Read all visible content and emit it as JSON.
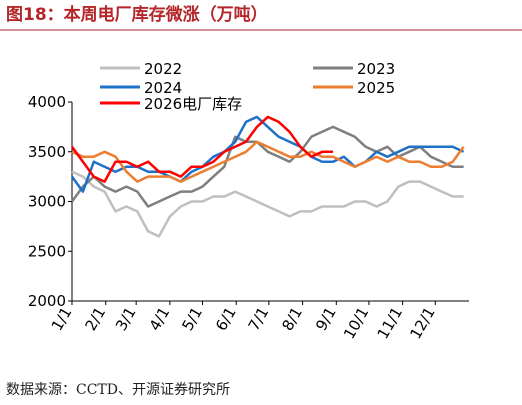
{
  "chart_data": {
    "type": "line",
    "title": "图18：本周电厂库存微涨（万吨）",
    "source": "数据来源：CCTD、开源证券研究所",
    "x": [
      0,
      10,
      20,
      30,
      40,
      50,
      60,
      70,
      80,
      90,
      100,
      110,
      120,
      130,
      140,
      150,
      160,
      170,
      180,
      190,
      200,
      210,
      220,
      230,
      240,
      250,
      260,
      270,
      280,
      290,
      300,
      310,
      320,
      330,
      340,
      350,
      360
    ],
    "xlim": [
      0,
      365
    ],
    "xticks": [
      {
        "value": 0,
        "label": "1/1"
      },
      {
        "value": 31,
        "label": "2/1"
      },
      {
        "value": 59,
        "label": "3/1"
      },
      {
        "value": 90,
        "label": "4/1"
      },
      {
        "value": 120,
        "label": "5/1"
      },
      {
        "value": 151,
        "label": "6/1"
      },
      {
        "value": 181,
        "label": "7/1"
      },
      {
        "value": 212,
        "label": "8/1"
      },
      {
        "value": 243,
        "label": "9/1"
      },
      {
        "value": 273,
        "label": "10/1"
      },
      {
        "value": 304,
        "label": "11/1"
      },
      {
        "value": 334,
        "label": "12/1"
      }
    ],
    "ylim": [
      2000,
      4000
    ],
    "yticks": [
      2000,
      2500,
      3000,
      3500,
      4000
    ],
    "grid": false,
    "series": [
      {
        "name": "2022",
        "color": "#bfbfbf",
        "values": [
          3300,
          3250,
          3150,
          3100,
          2900,
          2950,
          2900,
          2700,
          2650,
          2850,
          2950,
          3000,
          3000,
          3050,
          3050,
          3100,
          3050,
          3000,
          2950,
          2900,
          2850,
          2900,
          2900,
          2950,
          2950,
          2950,
          3000,
          3000,
          2950,
          3000,
          3150,
          3200,
          3200,
          3150,
          3100,
          3050,
          3050
        ]
      },
      {
        "name": "2023",
        "color": "#7f7f7f",
        "values": [
          3000,
          3150,
          3250,
          3150,
          3100,
          3150,
          3100,
          2950,
          3000,
          3050,
          3100,
          3100,
          3150,
          3250,
          3350,
          3650,
          3600,
          3600,
          3500,
          3450,
          3400,
          3500,
          3650,
          3700,
          3750,
          3700,
          3650,
          3550,
          3500,
          3550,
          3450,
          3500,
          3550,
          3450,
          3400,
          3350,
          3350
        ]
      },
      {
        "name": "2024",
        "color": "#1f70c8",
        "values": [
          3250,
          3100,
          3400,
          3350,
          3300,
          3350,
          3350,
          3300,
          3300,
          3250,
          3200,
          3300,
          3350,
          3450,
          3500,
          3600,
          3800,
          3850,
          3750,
          3650,
          3600,
          3550,
          3450,
          3400,
          3400,
          3450,
          3350,
          3400,
          3500,
          3450,
          3500,
          3550,
          3550,
          3550,
          3550,
          3550,
          3500
        ]
      },
      {
        "name": "2025",
        "color": "#ed7d31",
        "values": [
          3500,
          3450,
          3450,
          3500,
          3450,
          3300,
          3200,
          3250,
          3250,
          3250,
          3200,
          3250,
          3300,
          3350,
          3400,
          3450,
          3500,
          3600,
          3550,
          3500,
          3450,
          3450,
          3500,
          3450,
          3450,
          3400,
          3350,
          3400,
          3450,
          3400,
          3450,
          3400,
          3400,
          3350,
          3350,
          3400,
          3550
        ]
      },
      {
        "name": "2026电厂库存",
        "color": "#ff0000",
        "values": [
          3550,
          3400,
          3250,
          3200,
          3400,
          3400,
          3350,
          3400,
          3300,
          3300,
          3250,
          3350,
          3350,
          3400,
          3500,
          3550,
          3600,
          3750,
          3850,
          3800,
          3700,
          3550,
          3450,
          3500,
          3500,
          null,
          null,
          null,
          null,
          null,
          null,
          null,
          null,
          null,
          null,
          null,
          null
        ]
      }
    ]
  }
}
